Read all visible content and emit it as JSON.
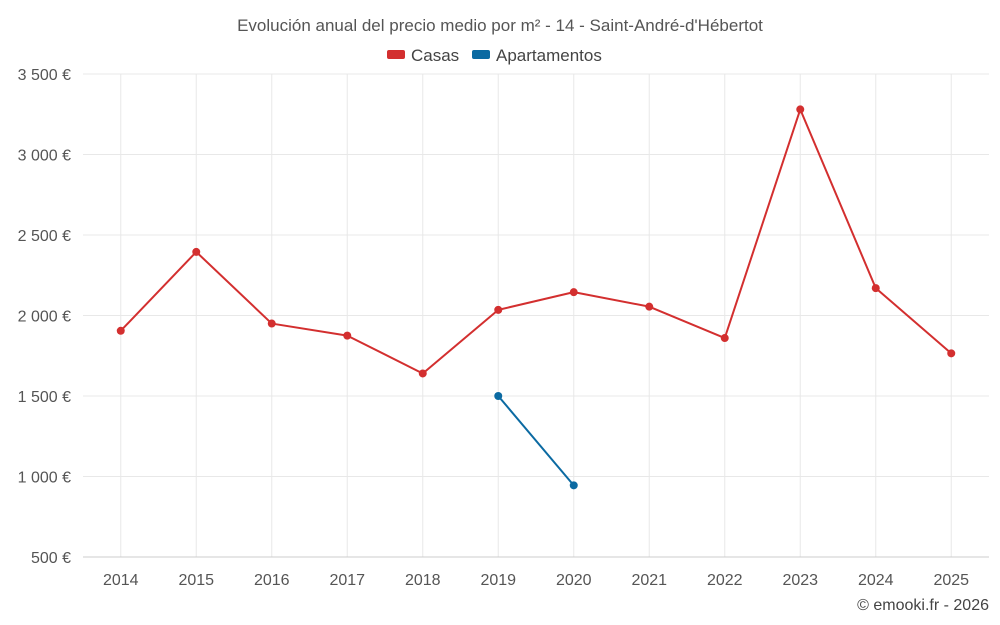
{
  "chart_data": {
    "type": "line",
    "title": "Evolución anual del precio medio por m² - 14 - Saint-André-d'Hébertot",
    "categories": [
      "2014",
      "2015",
      "2016",
      "2017",
      "2018",
      "2019",
      "2020",
      "2021",
      "2022",
      "2023",
      "2024",
      "2025"
    ],
    "y_ticks": [
      500,
      1000,
      1500,
      2000,
      2500,
      3000,
      3500
    ],
    "y_tick_labels": [
      "500 €",
      "1 000 €",
      "1 500 €",
      "2 000 €",
      "2 500 €",
      "3 000 €",
      "3 500 €"
    ],
    "ylim": [
      500,
      3500
    ],
    "grid": true,
    "legend_position": "top-center",
    "series": [
      {
        "name": "Casas",
        "color": "#d32f2f",
        "values": [
          1905,
          2395,
          1950,
          1875,
          1640,
          2035,
          2145,
          2055,
          1860,
          3280,
          2170,
          1765
        ]
      },
      {
        "name": "Apartamentos",
        "color": "#0b6aa2",
        "values": [
          null,
          null,
          null,
          null,
          null,
          1500,
          945,
          null,
          null,
          null,
          null,
          null
        ]
      }
    ],
    "credit": "© emooki.fr - 2026"
  }
}
